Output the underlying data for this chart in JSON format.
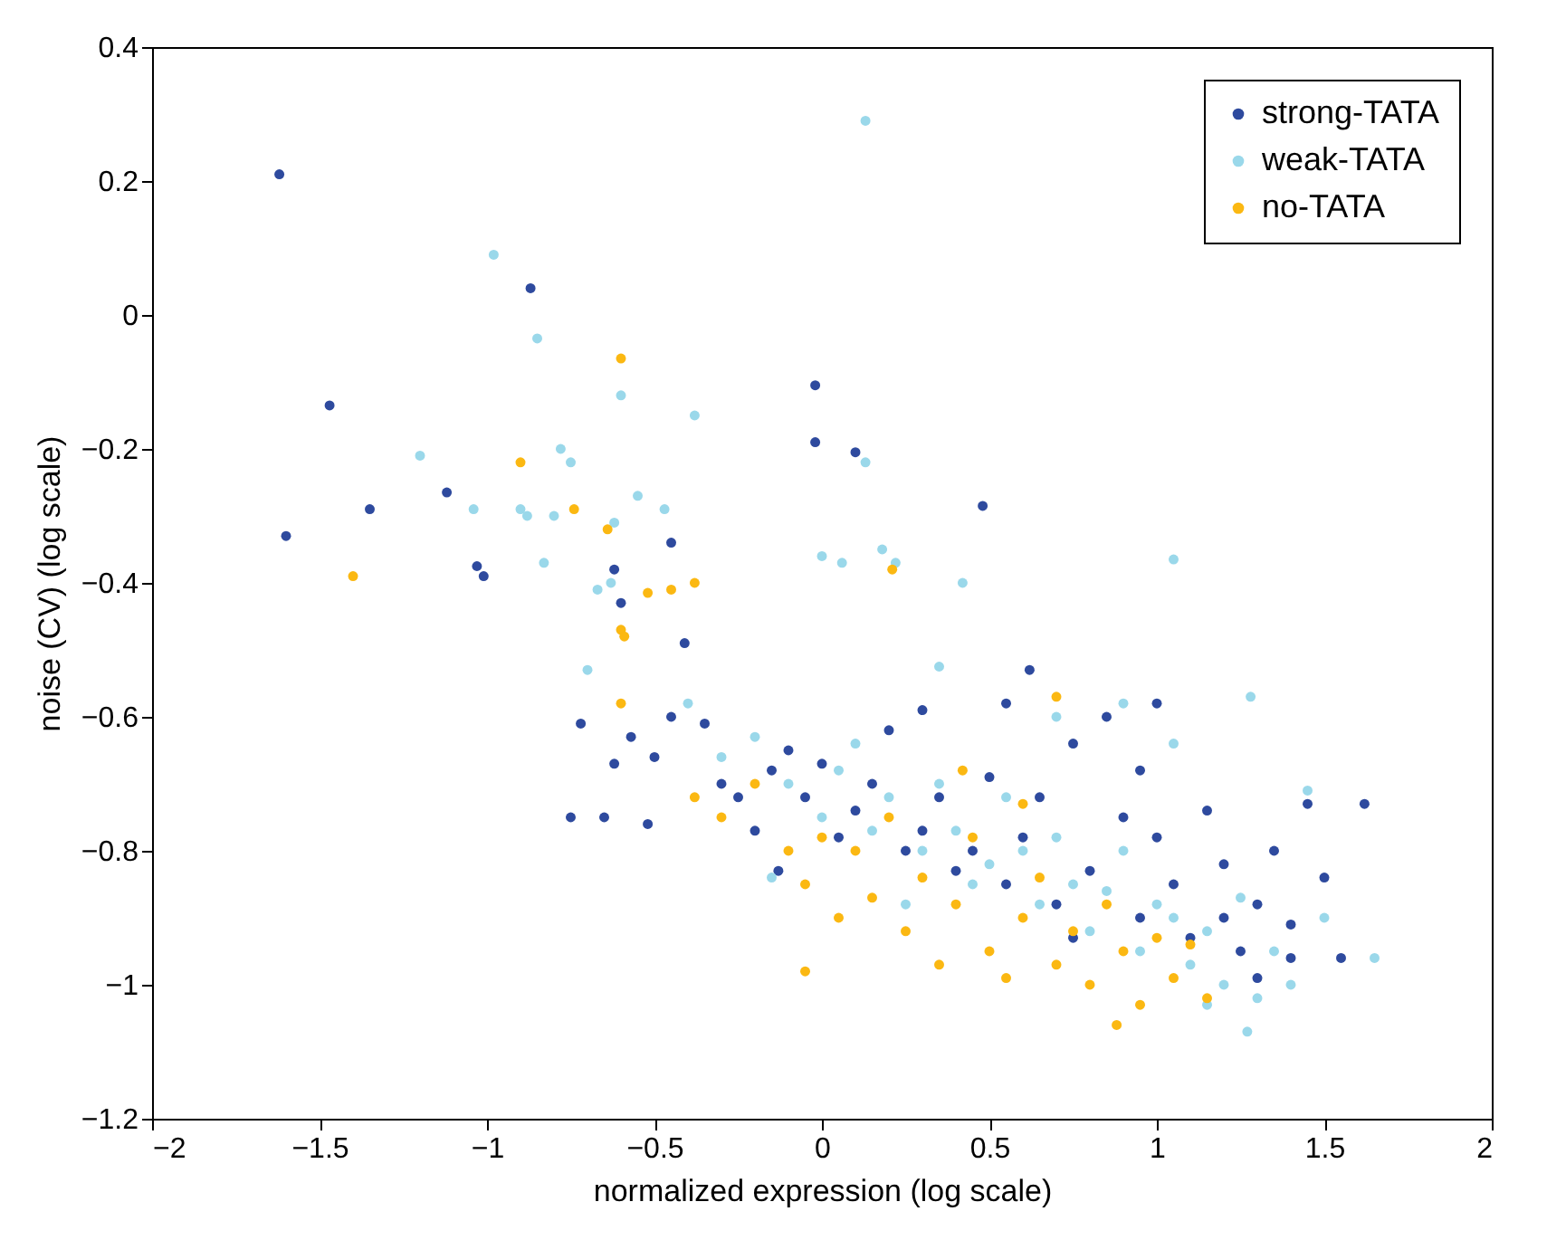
{
  "chart_data": {
    "type": "scatter",
    "xlabel": "normalized expression (log scale)",
    "ylabel": "noise (CV) (log scale)",
    "xlim": [
      -2,
      2
    ],
    "xticks": [
      -2,
      -1.5,
      -1,
      -0.5,
      0,
      0.5,
      1,
      1.5,
      2
    ],
    "ylim": [
      -1.2,
      0.4
    ],
    "yticks": [
      -1.2,
      -1,
      -0.8,
      -0.6,
      -0.4,
      -0.2,
      0,
      0.2,
      0.4
    ],
    "grid": false,
    "legend": "top right",
    "marker": "circle",
    "series": [
      {
        "name": "strong-TATA",
        "color": "#2e4a9e",
        "x": [
          -1.62,
          -1.47,
          -1.6,
          -1.35,
          -1.12,
          -1.03,
          -1.01,
          -0.87,
          -0.62,
          -0.6,
          -0.45,
          -0.41,
          -0.02,
          -0.02,
          0.1,
          0.48,
          1.62,
          -0.72,
          -0.57,
          -0.5,
          -0.62,
          -0.75,
          -0.65,
          -0.52,
          -0.45,
          -0.35,
          -0.3,
          -0.25,
          -0.2,
          -0.15,
          -0.1,
          -0.05,
          0.0,
          0.05,
          0.1,
          0.15,
          0.2,
          0.25,
          0.3,
          0.35,
          0.4,
          0.45,
          0.5,
          0.55,
          0.6,
          0.65,
          0.7,
          0.75,
          0.8,
          0.85,
          0.9,
          0.95,
          1.0,
          1.05,
          1.1,
          1.15,
          1.2,
          1.25,
          1.3,
          1.35,
          1.4,
          1.45,
          1.5,
          1.55,
          1.3,
          1.0,
          0.62,
          0.55,
          0.95,
          1.2,
          1.4,
          0.3,
          -0.13,
          0.75
        ],
        "values": [
          0.21,
          -0.135,
          -0.33,
          -0.29,
          -0.265,
          -0.375,
          -0.39,
          0.04,
          -0.38,
          -0.43,
          -0.34,
          -0.49,
          -0.105,
          -0.19,
          -0.205,
          -0.285,
          -0.73,
          -0.61,
          -0.63,
          -0.66,
          -0.67,
          -0.75,
          -0.75,
          -0.76,
          -0.6,
          -0.61,
          -0.7,
          -0.72,
          -0.77,
          -0.68,
          -0.65,
          -0.72,
          -0.67,
          -0.78,
          -0.74,
          -0.7,
          -0.62,
          -0.8,
          -0.77,
          -0.72,
          -0.83,
          -0.8,
          -0.69,
          -0.85,
          -0.78,
          -0.72,
          -0.88,
          -0.64,
          -0.83,
          -0.6,
          -0.75,
          -0.9,
          -0.78,
          -0.85,
          -0.93,
          -0.74,
          -0.82,
          -0.95,
          -0.88,
          -0.8,
          -0.91,
          -0.73,
          -0.84,
          -0.96,
          -0.99,
          -0.58,
          -0.53,
          -0.58,
          -0.68,
          -0.9,
          -0.96,
          -0.59,
          -0.83,
          -0.93
        ]
      },
      {
        "name": "weak-TATA",
        "color": "#9ad8ea",
        "x": [
          0.13,
          -0.98,
          -0.85,
          -0.6,
          -0.38,
          -1.2,
          -0.78,
          -0.9,
          -0.88,
          -0.8,
          -0.75,
          -1.04,
          -0.83,
          -0.62,
          -0.55,
          -0.47,
          0.13,
          0.0,
          0.06,
          0.18,
          0.22,
          0.42,
          1.05,
          -0.63,
          -0.67,
          -0.7,
          0.35,
          -0.4,
          -0.3,
          -0.2,
          -0.1,
          0.0,
          0.05,
          0.1,
          0.15,
          0.2,
          0.3,
          0.35,
          0.4,
          0.45,
          0.5,
          0.55,
          0.6,
          0.65,
          0.7,
          0.75,
          0.8,
          0.85,
          0.9,
          0.95,
          1.0,
          1.05,
          1.1,
          1.15,
          1.2,
          1.25,
          1.3,
          1.35,
          1.4,
          1.5,
          1.65,
          1.27,
          1.45,
          1.28,
          0.9,
          0.7,
          -0.15,
          0.25,
          1.05,
          1.15
        ],
        "values": [
          0.29,
          0.09,
          -0.035,
          -0.12,
          -0.15,
          -0.21,
          -0.2,
          -0.29,
          -0.3,
          -0.3,
          -0.22,
          -0.29,
          -0.37,
          -0.31,
          -0.27,
          -0.29,
          -0.22,
          -0.36,
          -0.37,
          -0.35,
          -0.37,
          -0.4,
          -0.365,
          -0.4,
          -0.41,
          -0.53,
          -0.525,
          -0.58,
          -0.66,
          -0.63,
          -0.7,
          -0.75,
          -0.68,
          -0.64,
          -0.77,
          -0.72,
          -0.8,
          -0.7,
          -0.77,
          -0.85,
          -0.82,
          -0.72,
          -0.8,
          -0.88,
          -0.78,
          -0.85,
          -0.92,
          -0.86,
          -0.8,
          -0.95,
          -0.88,
          -0.9,
          -0.97,
          -0.92,
          -1.0,
          -0.87,
          -1.02,
          -0.95,
          -1.0,
          -0.9,
          -0.96,
          -1.07,
          -0.71,
          -0.57,
          -0.58,
          -0.6,
          -0.84,
          -0.88,
          -0.64,
          -1.03
        ]
      },
      {
        "name": "no-TATA",
        "color": "#fbb812",
        "x": [
          -0.6,
          -0.9,
          -1.4,
          -0.74,
          -0.64,
          -0.45,
          -0.38,
          -0.52,
          0.21,
          -0.6,
          -0.59,
          -0.6,
          -0.3,
          -0.2,
          -0.1,
          -0.05,
          0.0,
          0.05,
          0.1,
          0.15,
          0.2,
          0.25,
          0.3,
          0.35,
          0.4,
          0.45,
          0.5,
          0.55,
          0.6,
          0.65,
          0.7,
          0.75,
          0.8,
          0.85,
          0.9,
          0.95,
          1.0,
          1.05,
          1.1,
          0.88,
          0.42,
          0.7,
          -0.38,
          -0.05,
          0.6,
          1.15
        ],
        "values": [
          -0.065,
          -0.22,
          -0.39,
          -0.29,
          -0.32,
          -0.41,
          -0.4,
          -0.415,
          -0.38,
          -0.47,
          -0.48,
          -0.58,
          -0.75,
          -0.7,
          -0.8,
          -0.85,
          -0.78,
          -0.9,
          -0.8,
          -0.87,
          -0.75,
          -0.92,
          -0.84,
          -0.97,
          -0.88,
          -0.78,
          -0.95,
          -0.99,
          -0.9,
          -0.84,
          -0.97,
          -0.92,
          -1.0,
          -0.88,
          -0.95,
          -1.03,
          -0.93,
          -0.99,
          -0.94,
          -1.06,
          -0.68,
          -0.57,
          -0.72,
          -0.98,
          -0.73,
          -1.02
        ]
      }
    ]
  }
}
